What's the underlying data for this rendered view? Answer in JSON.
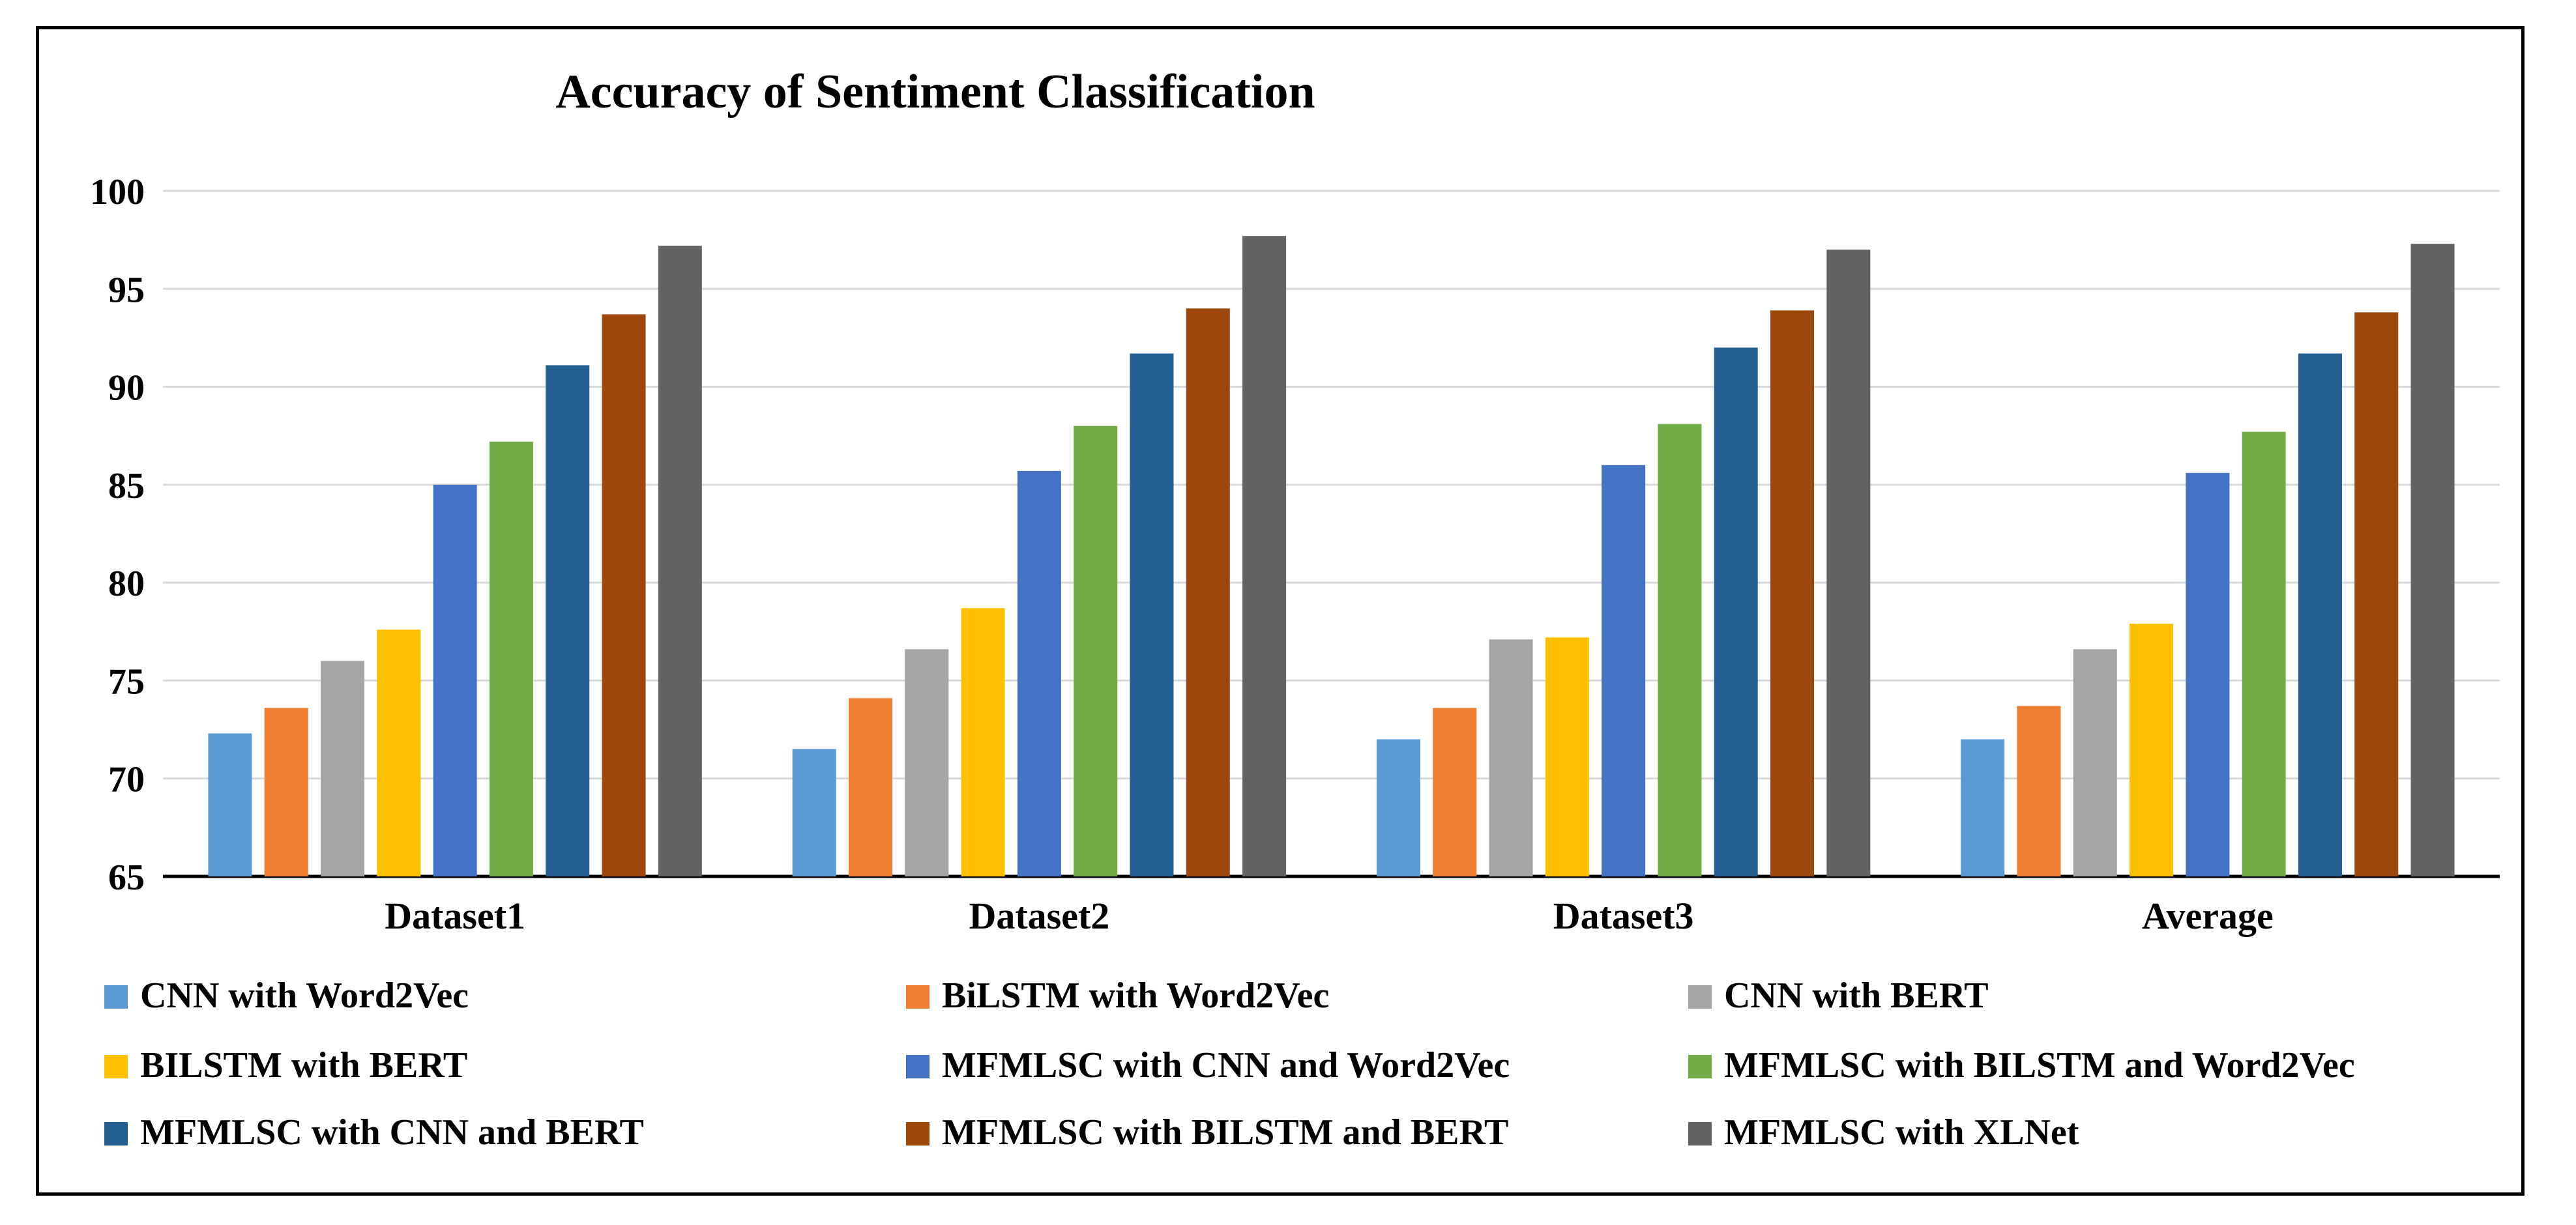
{
  "chart_data": {
    "type": "bar",
    "title": "Accuracy of Sentiment Classification",
    "xlabel": "",
    "ylabel": "",
    "ylim": [
      65,
      100
    ],
    "yticks": [
      65,
      70,
      75,
      80,
      85,
      90,
      95,
      100
    ],
    "grid": true,
    "legend_position": "bottom",
    "categories": [
      "Dataset1",
      "Dataset2",
      "Dataset3",
      "Average"
    ],
    "series": [
      {
        "name": "CNN with Word2Vec",
        "color": "#5B9BD5",
        "values": [
          72.3,
          71.5,
          72.0,
          72.0
        ]
      },
      {
        "name": "BiLSTM with Word2Vec",
        "color": "#ED7D31",
        "values": [
          73.6,
          74.1,
          73.6,
          73.7
        ]
      },
      {
        "name": "CNN with BERT",
        "color": "#A5A5A5",
        "values": [
          76.0,
          76.6,
          77.1,
          76.6
        ]
      },
      {
        "name": "BILSTM with BERT",
        "color": "#FFC000",
        "values": [
          77.6,
          78.7,
          77.2,
          77.9
        ]
      },
      {
        "name": "MFMLSC with CNN and Word2Vec",
        "color": "#4472C4",
        "values": [
          85.0,
          85.7,
          86.0,
          85.6
        ]
      },
      {
        "name": "MFMLSC with BILSTM and Word2Vec",
        "color": "#70AD47",
        "values": [
          87.2,
          88.0,
          88.1,
          87.7
        ]
      },
      {
        "name": "MFMLSC with CNN and BERT",
        "color": "#255E91",
        "values": [
          91.1,
          91.7,
          92.0,
          91.7
        ]
      },
      {
        "name": "MFMLSC with BILSTM and BERT",
        "color": "#9E480E",
        "values": [
          93.7,
          94.0,
          93.9,
          93.8
        ]
      },
      {
        "name": "MFMLSC with XLNet",
        "color": "#636363",
        "values": [
          97.2,
          97.7,
          97.0,
          97.3
        ]
      }
    ]
  }
}
